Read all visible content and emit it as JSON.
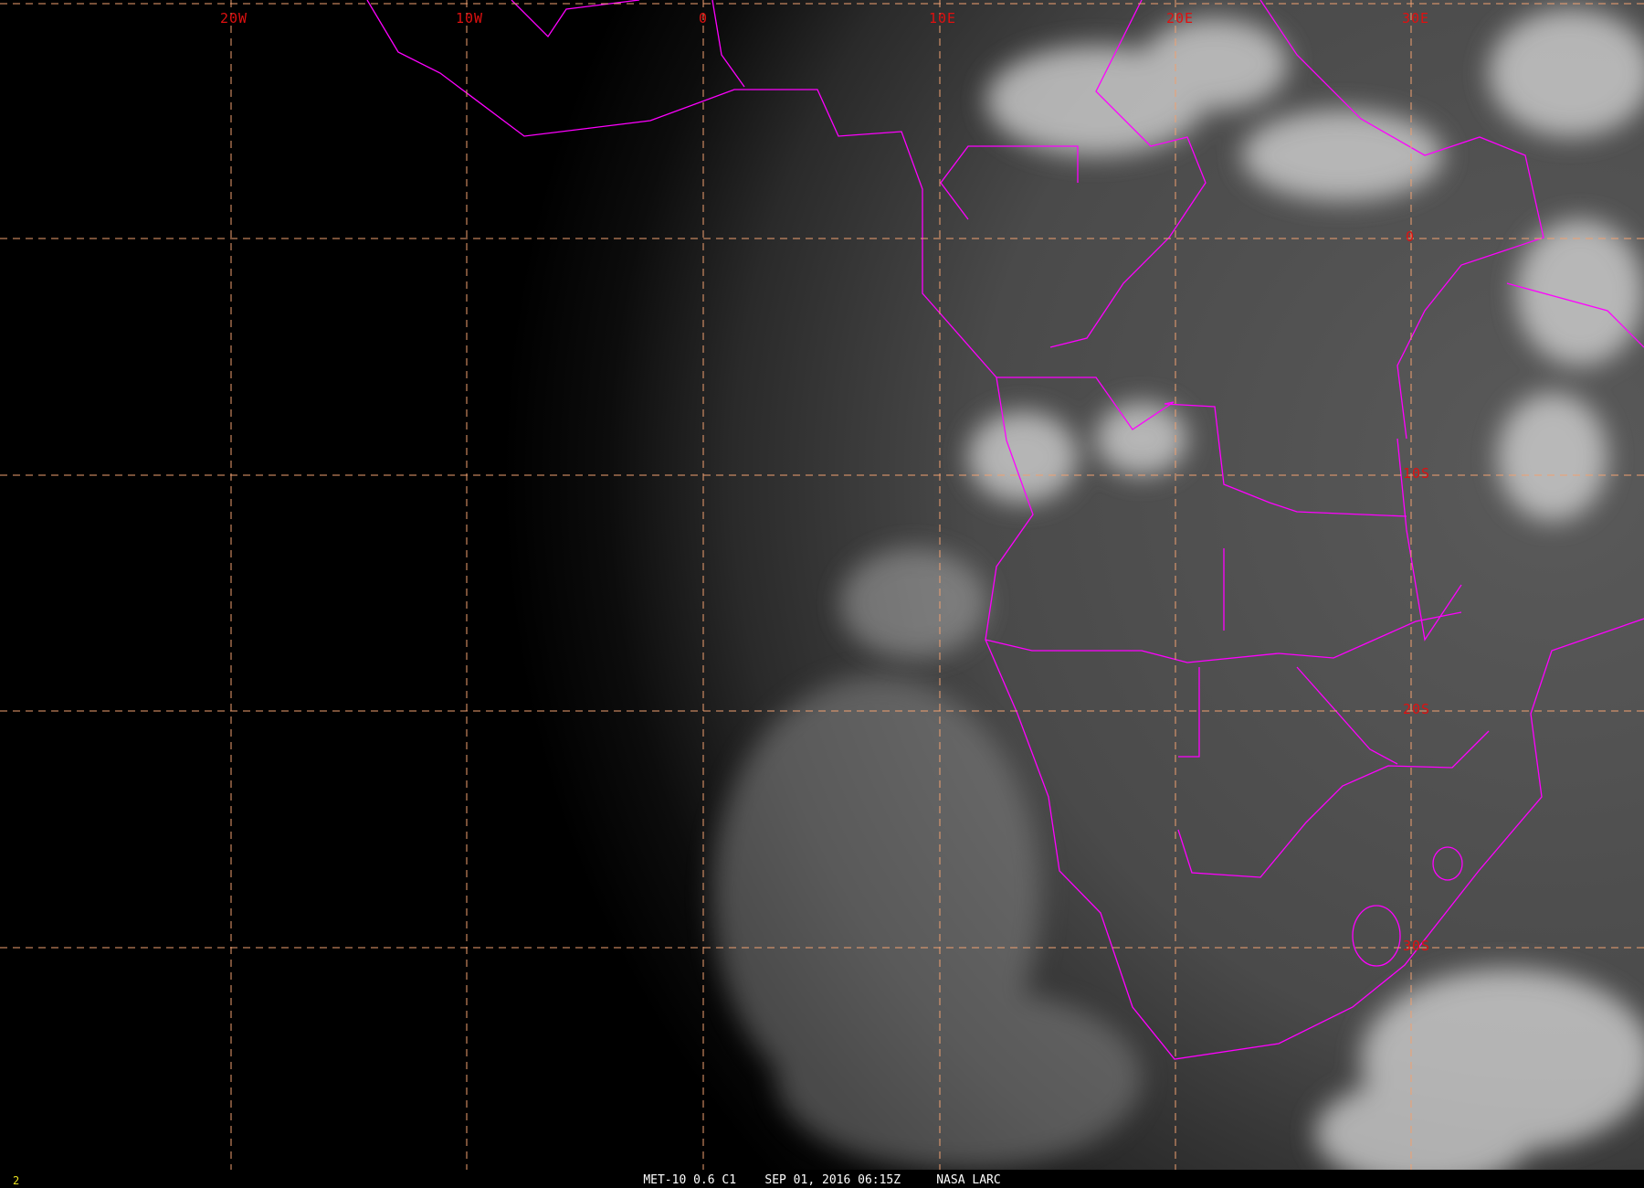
{
  "caption": {
    "satellite": "MET-10 0.6 C1",
    "datetime": "SEP 01, 2016 06:15Z",
    "source": "NASA LARC"
  },
  "frame_number": "2",
  "grid": {
    "longitude_labels": [
      "20W",
      "10W",
      "0",
      "10E",
      "20E",
      "30E"
    ],
    "latitude_labels": [
      "0",
      "10S",
      "20S",
      "30S"
    ]
  },
  "colors": {
    "background": "#000000",
    "border_lines": "#ff00ff",
    "grid_lines": "#f0a070",
    "grid_labels": "#e01010",
    "frame_number": "#e8e020",
    "caption_text": "#ffffff"
  }
}
